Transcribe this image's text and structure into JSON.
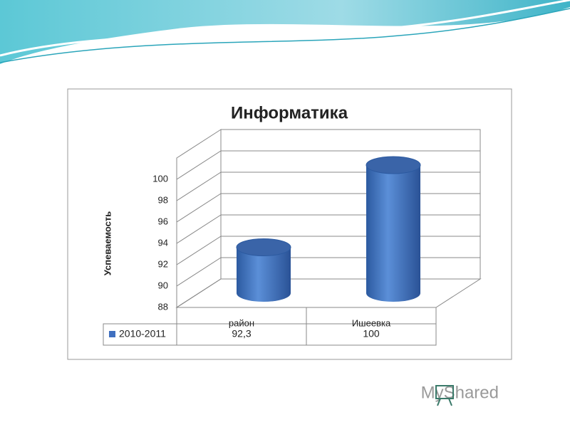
{
  "chart_data": {
    "type": "bar",
    "title": "Информатика",
    "y_label": "Успеваемость",
    "categories": [
      "район",
      "Ишеевка"
    ],
    "series": [
      {
        "name": "2010-2011",
        "color": "#3f6fbf",
        "values": [
          92.3,
          100
        ],
        "value_labels": [
          "92,3",
          "100"
        ]
      }
    ],
    "ylim": [
      88,
      102
    ],
    "yticks": [
      88,
      90,
      92,
      94,
      96,
      98,
      100
    ],
    "grid": true
  },
  "watermark": "MyShared"
}
